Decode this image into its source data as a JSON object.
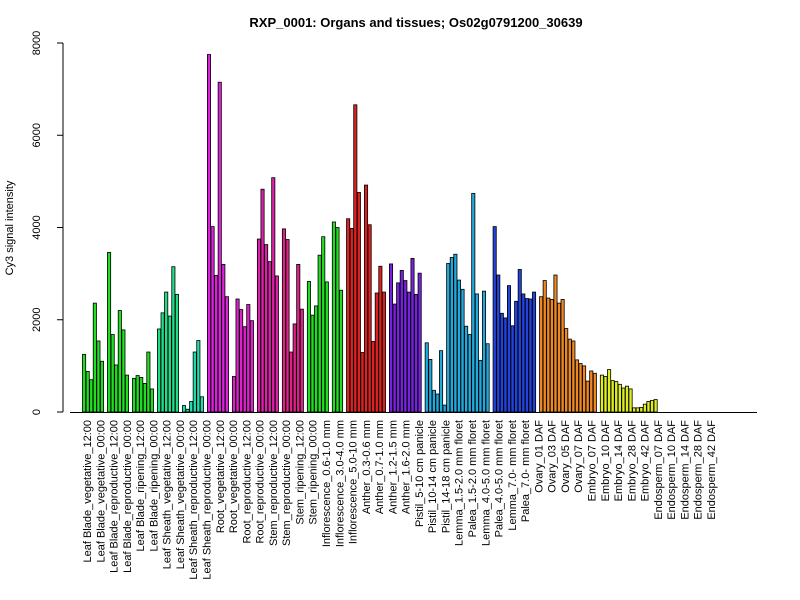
{
  "chart_data": {
    "type": "bar",
    "title": "RXP_0001: Organs and tissues; Os02g0791200_30639",
    "xlabel": "",
    "ylabel": "Cy3 signal intensity",
    "ylim": [
      0,
      8000
    ],
    "yticks": [
      0,
      2000,
      4000,
      6000,
      8000
    ],
    "grid": false,
    "legend": "none",
    "groups": [
      {
        "color": "#22dd22",
        "values": [
          1250,
          880,
          700,
          2360,
          1540,
          1100
        ]
      },
      {
        "color": "#22dd22",
        "values": [
          3460,
          1680,
          1020,
          2200,
          1780,
          800
        ]
      },
      {
        "color": "#22dd22",
        "values": [
          730,
          790,
          750,
          620,
          1300,
          500
        ]
      },
      {
        "color": "#22dd88",
        "values": [
          1800,
          2150,
          2600,
          2080,
          3150,
          2550
        ]
      },
      {
        "color": "#22ddaa",
        "values": [
          140,
          60,
          230,
          1300,
          1550,
          330
        ]
      },
      {
        "color": "#dd22dd",
        "values": [
          7750,
          4020,
          2960,
          7150,
          3200,
          2500
        ]
      },
      {
        "color": "#dd22cc",
        "values": [
          770,
          2450,
          2220,
          1850,
          2330,
          1980
        ]
      },
      {
        "color": "#dd22aa",
        "values": [
          3750,
          4830,
          3630,
          3260,
          5080,
          2950
        ]
      },
      {
        "color": "#dd2288",
        "values": [
          3970,
          3740,
          1300,
          1910,
          3200,
          2230
        ]
      },
      {
        "color": "#22dd22",
        "values": [
          2830,
          2100,
          2300,
          3400,
          3800,
          2820
        ]
      },
      {
        "color": "#22dd22",
        "values": [
          4120,
          4000,
          2640
        ]
      },
      {
        "color": "#dd2222",
        "values": [
          4190,
          3980,
          6660,
          4760,
          1290,
          4920,
          4060,
          1530,
          2580,
          3160,
          2600
        ]
      },
      {
        "color": "#7722dd",
        "values": [
          3210,
          2340,
          2800,
          3070,
          2850,
          2600,
          3330,
          2550,
          3010
        ]
      },
      {
        "color": "#22aadd",
        "values": [
          1500,
          1140,
          470,
          390,
          1330,
          150,
          3220,
          3350,
          3420,
          2860,
          2660,
          1860,
          1680,
          4740,
          2560,
          1120,
          2620,
          1480
        ]
      },
      {
        "color": "#2244dd",
        "values": [
          4020,
          2970,
          2140,
          2040,
          2740,
          1870,
          2400,
          3090,
          2560,
          2460,
          2450,
          2600
        ]
      },
      {
        "color": "#ee8822",
        "values": [
          2500,
          2850,
          2470,
          2440,
          2970,
          2360,
          2440,
          1810,
          1580,
          1540,
          1130,
          1050,
          1000,
          670,
          890,
          840
        ]
      },
      {
        "color": "#ddee22",
        "values": [
          800,
          770,
          920,
          680,
          660,
          600,
          520,
          560,
          500,
          90,
          90,
          100,
          170,
          230,
          250,
          270
        ]
      }
    ],
    "categories": [
      "Leaf Blade_vegetative_12:00",
      "Leaf Blade_vegetative_00:00",
      "Leaf Blade_reproductive_12:00",
      "Leaf Blade_reproductive_00:00",
      "Leaf Blade_ripening_12:00",
      "Leaf Blade_ripening_00:00",
      "Leaf Sheath_vegetative_12:00",
      "Leaf Sheath_vegetative_00:00",
      "Leaf Sheath_reproductive_12:00",
      "Leaf Sheath_reproductive_00:00",
      "Root_vegetative_12:00",
      "Root_vegetative_00:00",
      "Root_reproductive_12:00",
      "Root_reproductive_00:00",
      "Stem_reproductive_12:00",
      "Stem_reproductive_00:00",
      "Stem_ripening_12:00",
      "Stem_ripening_00:00",
      "Inflorescence_0.6-1.0 mm",
      "Inflorescence_3.0-4.0 mm",
      "Inflorescence_5.0-10 mm",
      "Anther_0.3-0.6 mm",
      "Anther_0.7-1.0 mm",
      "Anther_1.2-1.5 mm",
      "Anther_1.6-2.0 mm",
      "Pistil_5-10 cm panicle",
      "Pistil_10-14 cm panicle",
      "Pistil_14-18 cm panicle",
      "Lemma_1.5-2.0 mm floret",
      "Palea_1.5-2.0 mm floret",
      "Lemma_4.0-5.0 mm floret",
      "Palea_4.0-5.0 mm floret",
      "Lemma_7.0- mm floret",
      "Palea_7.0- mm floret",
      "Ovary_01 DAF",
      "Ovary_03 DAF",
      "Ovary_05 DAF",
      "Ovary_07 DAF",
      "Embryo_07 DAF",
      "Embryo_10 DAF",
      "Embryo_14 DAF",
      "Embryo_28 DAF",
      "Embryo_42 DAF",
      "Endosperm_07 DAF",
      "Endosperm_10 DAF",
      "Endosperm_14 DAF",
      "Endosperm_28 DAF",
      "Endosperm_42 DAF"
    ]
  }
}
